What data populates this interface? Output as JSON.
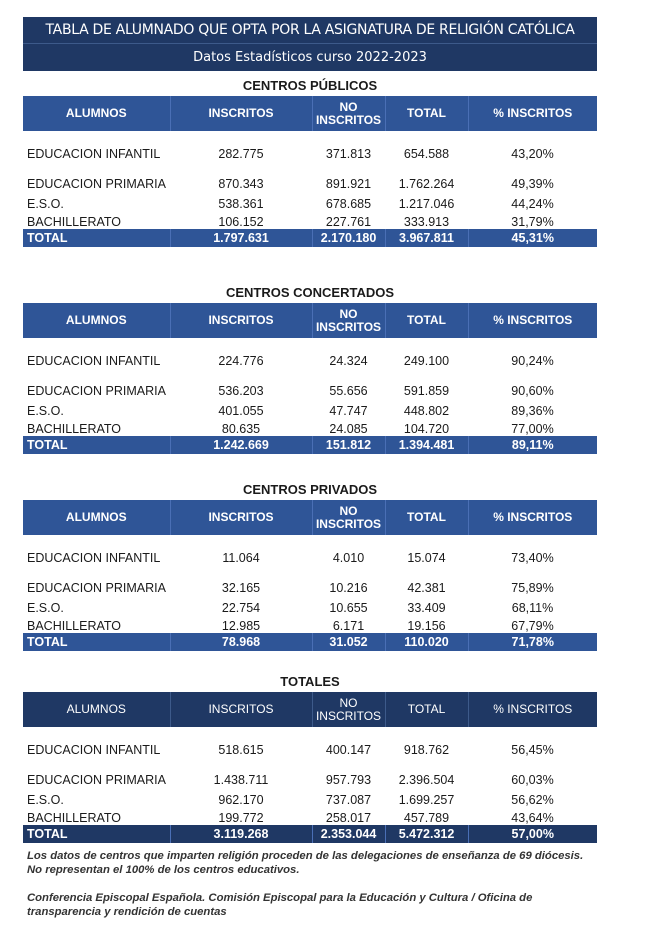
{
  "header": {
    "title": "TABLA DE ALUMNADO QUE OPTA POR LA ASIGNATURA DE RELIGIÓN CATÓLICA",
    "subtitle": "Datos Estadísticos curso 2022-2023"
  },
  "colors": {
    "header_blue": "#2f5597",
    "dark_navy": "#1f3864"
  },
  "columns": [
    "ALUMNOS",
    "INSCRITOS",
    "NO INSCRITOS",
    "TOTAL",
    "% INSCRITOS"
  ],
  "tables": [
    {
      "title": "CENTROS PÚBLICOS",
      "rows": [
        [
          "EDUCACION INFANTIL",
          "282.775",
          "371.813",
          "654.588",
          "43,20%"
        ],
        [
          "EDUCACION PRIMARIA",
          "870.343",
          "891.921",
          "1.762.264",
          "49,39%"
        ],
        [
          "E.S.O.",
          "538.361",
          "678.685",
          "1.217.046",
          "44,24%"
        ],
        [
          "BACHILLERATO",
          "106.152",
          "227.761",
          "333.913",
          "31,79%"
        ]
      ],
      "total": [
        "TOTAL",
        "1.797.631",
        "2.170.180",
        "3.967.811",
        "45,31%"
      ]
    },
    {
      "title": "CENTROS CONCERTADOS",
      "rows": [
        [
          "EDUCACION INFANTIL",
          "224.776",
          "24.324",
          "249.100",
          "90,24%"
        ],
        [
          "EDUCACION PRIMARIA",
          "536.203",
          "55.656",
          "591.859",
          "90,60%"
        ],
        [
          "E.S.O.",
          "401.055",
          "47.747",
          "448.802",
          "89,36%"
        ],
        [
          "BACHILLERATO",
          "80.635",
          "24.085",
          "104.720",
          "77,00%"
        ]
      ],
      "total": [
        "TOTAL",
        "1.242.669",
        "151.812",
        "1.394.481",
        "89,11%"
      ]
    },
    {
      "title": "CENTROS PRIVADOS",
      "rows": [
        [
          "EDUCACION INFANTIL",
          "11.064",
          "4.010",
          "15.074",
          "73,40%"
        ],
        [
          "EDUCACION PRIMARIA",
          "32.165",
          "10.216",
          "42.381",
          "75,89%"
        ],
        [
          "E.S.O.",
          "22.754",
          "10.655",
          "33.409",
          "68,11%"
        ],
        [
          "BACHILLERATO",
          "12.985",
          "6.171",
          "19.156",
          "67,79%"
        ]
      ],
      "total": [
        "TOTAL",
        "78.968",
        "31.052",
        "110.020",
        "71,78%"
      ]
    },
    {
      "title": "TOTALES",
      "rows": [
        [
          "EDUCACION INFANTIL",
          "518.615",
          "400.147",
          "918.762",
          "56,45%"
        ],
        [
          "EDUCACION PRIMARIA",
          "1.438.711",
          "957.793",
          "2.396.504",
          "60,03%"
        ],
        [
          "E.S.O.",
          "962.170",
          "737.087",
          "1.699.257",
          "56,62%"
        ],
        [
          "BACHILLERATO",
          "199.772",
          "258.017",
          "457.789",
          "43,64%"
        ]
      ],
      "total": [
        "TOTAL",
        "3.119.268",
        "2.353.044",
        "5.472.312",
        "57,00%"
      ]
    }
  ],
  "notes": [
    "Los datos de centros que imparten religión proceden de las delegaciones de enseñanza de 69 diócesis. No representan el 100% de los centros educativos.",
    "Conferencia Episcopal Española. Comisión Episcopal para la Educación y Cultura / Oficina de transparencia y rendición de cuentas"
  ]
}
